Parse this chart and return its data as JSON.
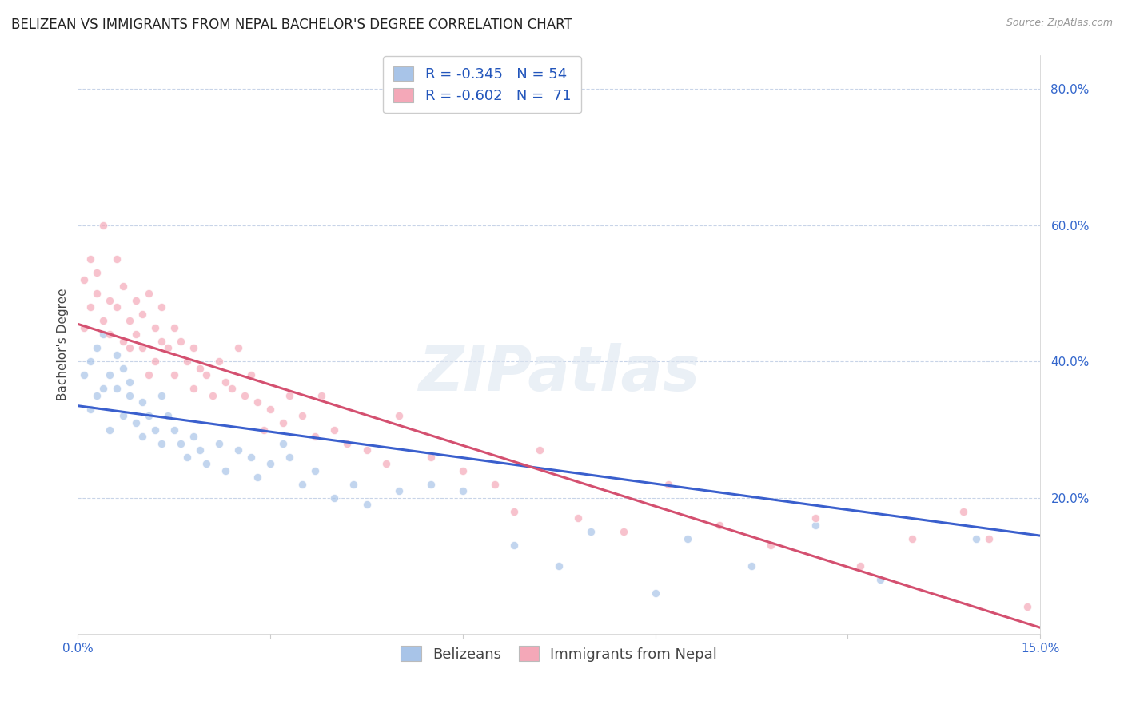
{
  "title": "BELIZEAN VS IMMIGRANTS FROM NEPAL BACHELOR'S DEGREE CORRELATION CHART",
  "source": "Source: ZipAtlas.com",
  "ylabel": "Bachelor's Degree",
  "watermark": "ZIPatlas",
  "xlim": [
    0.0,
    0.15
  ],
  "ylim": [
    0.0,
    0.85
  ],
  "xticks": [
    0.0,
    0.03,
    0.06,
    0.09,
    0.12,
    0.15
  ],
  "xtick_labels": [
    "0.0%",
    "",
    "",
    "",
    "",
    "15.0%"
  ],
  "ytick_labels": [
    "20.0%",
    "40.0%",
    "60.0%",
    "80.0%"
  ],
  "yticks": [
    0.2,
    0.4,
    0.6,
    0.8
  ],
  "belizean_color": "#a8c4e8",
  "nepal_color": "#f4a8b8",
  "belizean_line_color": "#3a5fcd",
  "nepal_line_color": "#d45070",
  "legend_text_color": "#2255bb",
  "r_belizean": -0.345,
  "n_belizean": 54,
  "r_nepal": -0.602,
  "n_nepal": 71,
  "belizean_scatter_x": [
    0.001,
    0.002,
    0.002,
    0.003,
    0.003,
    0.004,
    0.004,
    0.005,
    0.005,
    0.006,
    0.006,
    0.007,
    0.007,
    0.008,
    0.008,
    0.009,
    0.01,
    0.01,
    0.011,
    0.012,
    0.013,
    0.013,
    0.014,
    0.015,
    0.016,
    0.017,
    0.018,
    0.019,
    0.02,
    0.022,
    0.023,
    0.025,
    0.027,
    0.028,
    0.03,
    0.032,
    0.033,
    0.035,
    0.037,
    0.04,
    0.043,
    0.045,
    0.05,
    0.055,
    0.06,
    0.068,
    0.075,
    0.08,
    0.09,
    0.095,
    0.105,
    0.115,
    0.125,
    0.14
  ],
  "belizean_scatter_y": [
    0.38,
    0.33,
    0.4,
    0.35,
    0.42,
    0.36,
    0.44,
    0.38,
    0.3,
    0.36,
    0.41,
    0.32,
    0.39,
    0.35,
    0.37,
    0.31,
    0.34,
    0.29,
    0.32,
    0.3,
    0.28,
    0.35,
    0.32,
    0.3,
    0.28,
    0.26,
    0.29,
    0.27,
    0.25,
    0.28,
    0.24,
    0.27,
    0.26,
    0.23,
    0.25,
    0.28,
    0.26,
    0.22,
    0.24,
    0.2,
    0.22,
    0.19,
    0.21,
    0.22,
    0.21,
    0.13,
    0.1,
    0.15,
    0.06,
    0.14,
    0.1,
    0.16,
    0.08,
    0.14
  ],
  "nepal_scatter_x": [
    0.001,
    0.001,
    0.002,
    0.002,
    0.003,
    0.003,
    0.004,
    0.004,
    0.005,
    0.005,
    0.006,
    0.006,
    0.007,
    0.007,
    0.008,
    0.008,
    0.009,
    0.009,
    0.01,
    0.01,
    0.011,
    0.011,
    0.012,
    0.012,
    0.013,
    0.013,
    0.014,
    0.015,
    0.015,
    0.016,
    0.017,
    0.018,
    0.018,
    0.019,
    0.02,
    0.021,
    0.022,
    0.023,
    0.024,
    0.025,
    0.026,
    0.027,
    0.028,
    0.029,
    0.03,
    0.032,
    0.033,
    0.035,
    0.037,
    0.038,
    0.04,
    0.042,
    0.045,
    0.048,
    0.05,
    0.055,
    0.06,
    0.065,
    0.068,
    0.072,
    0.078,
    0.085,
    0.092,
    0.1,
    0.108,
    0.115,
    0.122,
    0.13,
    0.138,
    0.142,
    0.148
  ],
  "nepal_scatter_y": [
    0.52,
    0.45,
    0.55,
    0.48,
    0.5,
    0.53,
    0.46,
    0.6,
    0.49,
    0.44,
    0.48,
    0.55,
    0.43,
    0.51,
    0.46,
    0.42,
    0.49,
    0.44,
    0.47,
    0.42,
    0.5,
    0.38,
    0.45,
    0.4,
    0.43,
    0.48,
    0.42,
    0.45,
    0.38,
    0.43,
    0.4,
    0.42,
    0.36,
    0.39,
    0.38,
    0.35,
    0.4,
    0.37,
    0.36,
    0.42,
    0.35,
    0.38,
    0.34,
    0.3,
    0.33,
    0.31,
    0.35,
    0.32,
    0.29,
    0.35,
    0.3,
    0.28,
    0.27,
    0.25,
    0.32,
    0.26,
    0.24,
    0.22,
    0.18,
    0.27,
    0.17,
    0.15,
    0.22,
    0.16,
    0.13,
    0.17,
    0.1,
    0.14,
    0.18,
    0.14,
    0.04
  ],
  "background_color": "#ffffff",
  "grid_color": "#c8d4e8",
  "title_fontsize": 12,
  "axis_label_fontsize": 11,
  "tick_fontsize": 11,
  "legend_fontsize": 13,
  "scatter_size": 55,
  "scatter_alpha": 0.7,
  "line_width": 2.2,
  "belizean_intercept": 0.335,
  "belizean_slope": -1.27,
  "nepal_intercept": 0.455,
  "nepal_slope": -2.97
}
